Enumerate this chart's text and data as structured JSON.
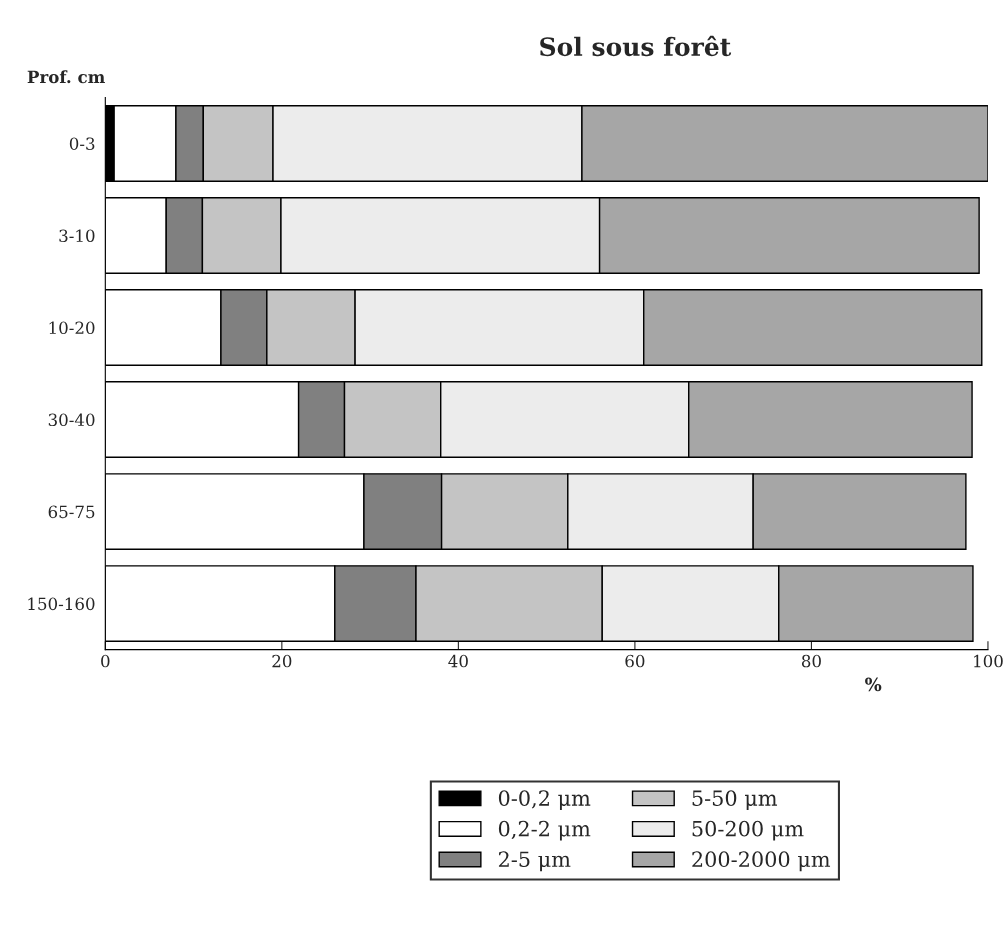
{
  "chart_data": {
    "type": "bar",
    "orientation": "horizontal",
    "stacked": true,
    "title": "Sol sous forêt",
    "ylabel": "Prof. cm",
    "xlabel": "%",
    "categories": [
      "0-3",
      "3-10",
      "10-20",
      "30-40",
      "65-75",
      "150-160"
    ],
    "series": [
      {
        "name": "0-0,2 μm",
        "color": "#000000",
        "values": [
          1.0,
          null,
          null,
          null,
          null,
          null
        ]
      },
      {
        "name": "0,2-2 μm",
        "color": "#ffffff",
        "values": [
          7.0,
          6.9,
          13.1,
          21.9,
          29.3,
          26.0
        ]
      },
      {
        "name": "2-5 μm",
        "color": "#808080",
        "values": [
          3.1,
          4.1,
          5.2,
          5.2,
          8.8,
          9.2
        ]
      },
      {
        "name": "5-50 μm",
        "color": "#c4c4c4",
        "values": [
          7.9,
          8.9,
          10.0,
          10.9,
          14.3,
          21.1
        ]
      },
      {
        "name": "50-200 μm",
        "color": "#ececec",
        "values": [
          35.0,
          36.1,
          32.7,
          28.1,
          21.0,
          20.0
        ]
      },
      {
        "name": "200-2000 μm",
        "color": "#a6a6a6",
        "values": [
          46.0,
          43.0,
          38.3,
          32.1,
          24.1,
          22.0
        ]
      }
    ],
    "xlim": [
      0,
      100
    ],
    "xticks": [
      0,
      20,
      40,
      60,
      80,
      100
    ],
    "grid": false,
    "legend": "bottom"
  }
}
